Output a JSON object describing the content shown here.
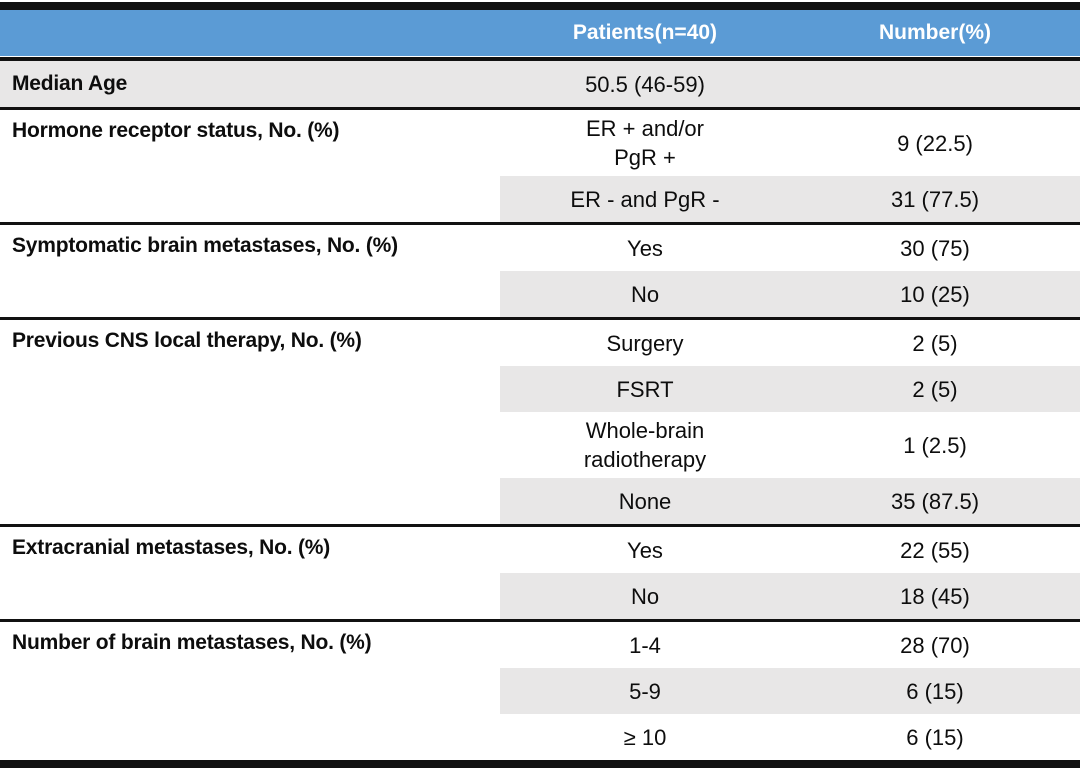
{
  "table": {
    "columns": {
      "patients": "Patients(n=40)",
      "number": "Number(%)"
    },
    "sections": [
      {
        "label": "Median Age",
        "full_row_shaded": true,
        "rows": [
          {
            "patients": "50.5 (46-59)",
            "number": "",
            "shaded": true
          }
        ]
      },
      {
        "label": "Hormone receptor status, No. (%)",
        "full_row_shaded": false,
        "rows": [
          {
            "patients": "ER + and/or\nPgR +",
            "number": "9 (22.5)",
            "shaded": false
          },
          {
            "patients": "ER - and PgR -",
            "number": "31 (77.5)",
            "shaded": true
          }
        ]
      },
      {
        "label": "Symptomatic brain metastases, No. (%)",
        "full_row_shaded": false,
        "rows": [
          {
            "patients": "Yes",
            "number": "30 (75)",
            "shaded": false
          },
          {
            "patients": "No",
            "number": "10 (25)",
            "shaded": true
          }
        ]
      },
      {
        "label": "Previous CNS local therapy, No. (%)",
        "full_row_shaded": false,
        "rows": [
          {
            "patients": "Surgery",
            "number": "2 (5)",
            "shaded": false
          },
          {
            "patients": "FSRT",
            "number": "2 (5)",
            "shaded": true
          },
          {
            "patients": "Whole-brain\nradiotherapy",
            "number": "1 (2.5)",
            "shaded": false
          },
          {
            "patients": "None",
            "number": "35 (87.5)",
            "shaded": true
          }
        ]
      },
      {
        "label": "Extracranial metastases, No. (%)",
        "full_row_shaded": false,
        "rows": [
          {
            "patients": "Yes",
            "number": "22 (55)",
            "shaded": false
          },
          {
            "patients": "No",
            "number": "18 (45)",
            "shaded": true
          }
        ]
      },
      {
        "label": "Number of brain metastases, No. (%)",
        "full_row_shaded": false,
        "rows": [
          {
            "patients": "1-4",
            "number": "28 (70)",
            "shaded": false
          },
          {
            "patients": "5-9",
            "number": "6 (15)",
            "shaded": true
          },
          {
            "patients": "≥ 10",
            "number": "6 (15)",
            "shaded": false
          }
        ]
      }
    ],
    "colors": {
      "header_bg": "#5B9BD5",
      "header_text": "#FFFFFF",
      "shaded_row_bg": "#E8E7E7",
      "border": "#111111",
      "body_text": "#0D0D0D"
    }
  }
}
